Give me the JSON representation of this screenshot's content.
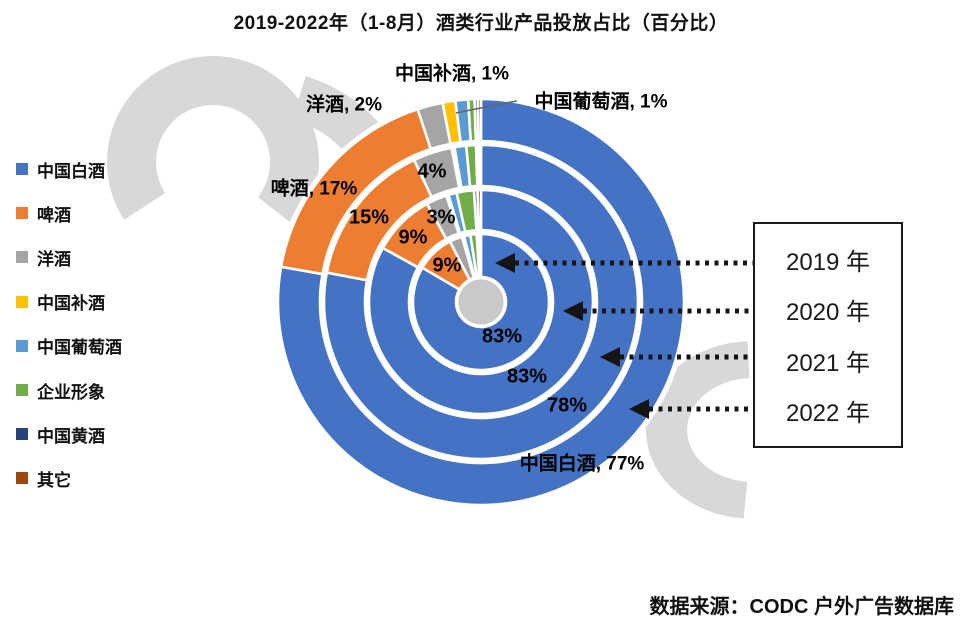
{
  "title": "2019-2022年（1-8月）酒类行业产品投放占比（百分比）",
  "source": "数据来源：CODC 户外广告数据库",
  "legend": {
    "items": [
      {
        "label": "中国白酒",
        "color": "#4472C4"
      },
      {
        "label": "啤酒",
        "color": "#ED7D31"
      },
      {
        "label": "洋酒",
        "color": "#A5A5A5"
      },
      {
        "label": "中国补酒",
        "color": "#FFC000"
      },
      {
        "label": "中国葡萄酒",
        "color": "#5B9BD5"
      },
      {
        "label": "企业形象",
        "color": "#70AD47"
      },
      {
        "label": "中国黄酒",
        "color": "#264478"
      },
      {
        "label": "其它",
        "color": "#9E480E"
      }
    ]
  },
  "years_box": {
    "items": [
      {
        "label": "2019 年"
      },
      {
        "label": "2020 年"
      },
      {
        "label": "2021 年"
      },
      {
        "label": "2022 年"
      }
    ]
  },
  "chart_data": {
    "type": "donut-multi-ring",
    "title": "2019-2022年（1-8月）酒类行业产品投放占比（百分比）",
    "unit": "percent",
    "rings_order": "innermost 2019 → outermost 2022, slices clockwise from 12 o'clock",
    "categories": [
      "中国白酒",
      "啤酒",
      "洋酒",
      "中国补酒",
      "中国葡萄酒",
      "企业形象",
      "中国黄酒",
      "其它"
    ],
    "colors": [
      "#4472C4",
      "#ED7D31",
      "#A5A5A5",
      "#FFC000",
      "#5B9BD5",
      "#70AD47",
      "#264478",
      "#9E480E"
    ],
    "rings": [
      {
        "year": "2019",
        "values": [
          83,
          9,
          3,
          0.5,
          1.5,
          1.5,
          0.5,
          0.5
        ]
      },
      {
        "year": "2020",
        "values": [
          83,
          9,
          3,
          0.3,
          1.2,
          2.5,
          0.5,
          0.5
        ]
      },
      {
        "year": "2021",
        "values": [
          78,
          15,
          4,
          0.3,
          1.2,
          1,
          0.25,
          0.25
        ]
      },
      {
        "year": "2022",
        "values": [
          77,
          17,
          2,
          1,
          1,
          0.5,
          0.25,
          0.25
        ]
      }
    ],
    "labeled_values": {
      "中国白酒": {
        "2019": "83%",
        "2020": "83%",
        "2021": "78%",
        "2022": "77%"
      },
      "啤酒": {
        "2019": "9%",
        "2020": "9%",
        "2021": "15%",
        "2022": "17%"
      },
      "洋酒": {
        "2020": "3%",
        "2021": "4%",
        "2022": "2%"
      },
      "中国补酒": {
        "2022": "1%"
      },
      "中国葡萄酒": {
        "2022": "1%"
      }
    },
    "callouts": [
      {
        "text": "中国补酒, 1%"
      },
      {
        "text": "洋酒, 2%"
      },
      {
        "text": "中国葡萄酒, 1%"
      },
      {
        "text": "啤酒, 17%"
      },
      {
        "text": "4%"
      },
      {
        "text": "15%"
      },
      {
        "text": "3%"
      },
      {
        "text": "9%"
      },
      {
        "text": "9%"
      },
      {
        "text": "83%"
      },
      {
        "text": "83%"
      },
      {
        "text": "78%"
      },
      {
        "text": "中国白酒, 77%"
      }
    ],
    "legend_position": "left",
    "watermark_color": "#D8D8D8",
    "hole_color": "#C9C9C9"
  }
}
